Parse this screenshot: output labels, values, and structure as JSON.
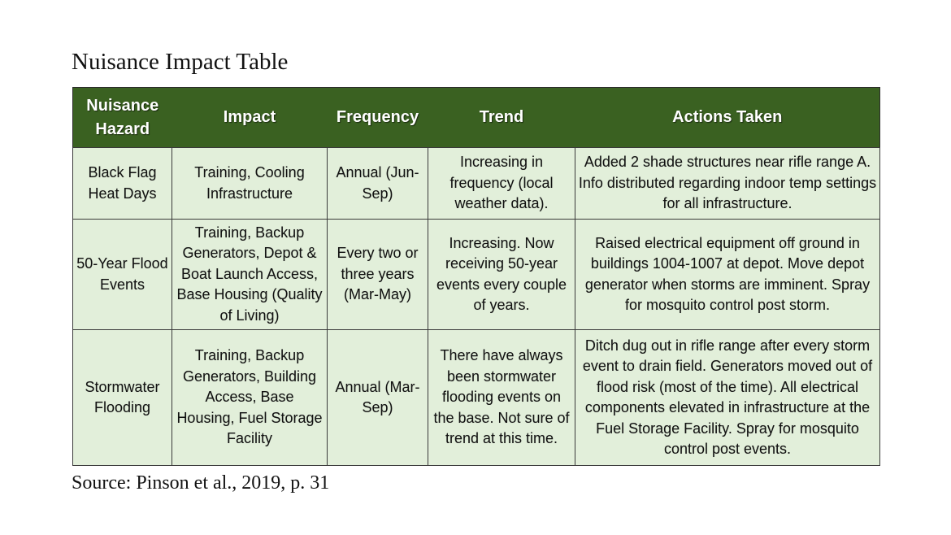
{
  "document": {
    "title": "Nuisance Impact Table",
    "source": "Source: Pinson et al., 2019, p. 31"
  },
  "table": {
    "headers": [
      "Nuisance Hazard",
      "Impact",
      "Frequency",
      "Trend",
      "Actions Taken"
    ],
    "rows": [
      {
        "hazard": "Black Flag Heat Days",
        "impact": "Training, Cooling Infrastructure",
        "frequency": "Annual (Jun-Sep)",
        "trend": "Increasing in frequency (local weather data).",
        "actions": "Added 2 shade structures near rifle range A. Info distributed regarding indoor temp settings for all infrastructure."
      },
      {
        "hazard": "50-Year Flood Events",
        "impact": "Training, Backup Generators, Depot & Boat Launch Access, Base Housing (Quality of Living)",
        "frequency": "Every two or three years (Mar-May)",
        "trend": "Increasing. Now receiving 50-year events every couple of years.",
        "actions": "Raised electrical equipment off ground in buildings 1004-1007 at depot. Move depot generator when storms are imminent. Spray for mosquito control post storm."
      },
      {
        "hazard": "Stormwater Flooding",
        "impact": "Training, Backup Generators, Building Access, Base Housing, Fuel Storage Facility",
        "frequency": "Annual (Mar-Sep)",
        "trend": "There have always been stormwater flooding events on the base. Not sure of trend at this time.",
        "actions": "Ditch dug out in rifle range after every storm event to drain field. Generators moved out of flood risk (most of the time). All electrical components elevated in infrastructure at the Fuel Storage Facility. Spray for mosquito control post events."
      }
    ]
  },
  "colors": {
    "header_background": "#3a6121",
    "header_text": "#ffffff",
    "cell_background": "#e2efda",
    "border": "#3a3a3a"
  }
}
